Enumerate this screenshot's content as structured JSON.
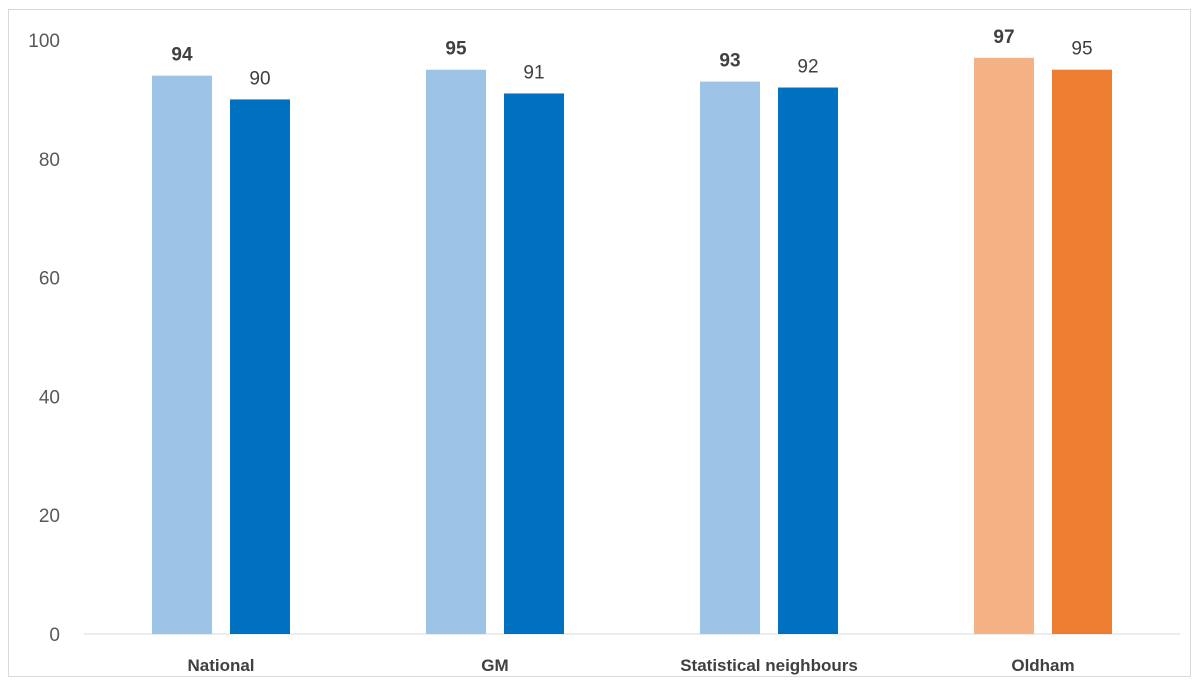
{
  "chart_data": {
    "type": "bar",
    "categories": [
      "National",
      "GM",
      "Statistical neighbours",
      "Oldham"
    ],
    "series": [
      {
        "values": [
          94,
          95,
          93,
          97
        ],
        "colors": [
          "#9dc3e6",
          "#9dc3e6",
          "#9dc3e6",
          "#f4b183"
        ],
        "label_weight": "bold"
      },
      {
        "values": [
          90,
          91,
          92,
          95
        ],
        "colors": [
          "#0070c0",
          "#0070c0",
          "#0070c0",
          "#ed7d31"
        ],
        "label_weight": "normal"
      }
    ],
    "title": "",
    "xlabel": "",
    "ylabel": "",
    "ylim": [
      0,
      100
    ],
    "yticks": [
      0,
      20,
      40,
      60,
      80,
      100
    ],
    "grid": false,
    "legend": "none"
  }
}
